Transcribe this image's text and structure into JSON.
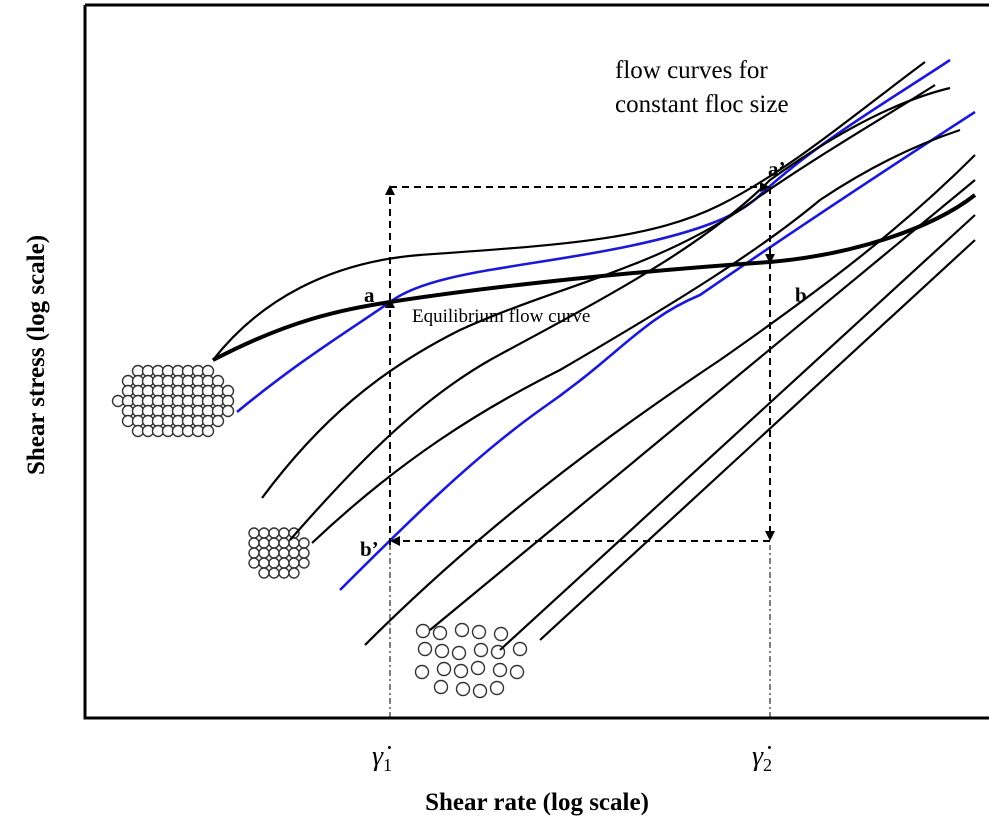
{
  "diagram": {
    "y_axis_label": "Shear stress (log scale)",
    "x_axis_label": "Shear rate (log scale)",
    "annotation": {
      "lines": [
        "flow curves for",
        "constant floc size"
      ]
    },
    "equilibrium_label": "Equilibrium flow curve",
    "points": {
      "a": "a",
      "a_prime": "a’",
      "b": "b",
      "b_prime": "b’"
    },
    "x_ticks": [
      {
        "symbol": "γ̇",
        "subscript": "1"
      },
      {
        "symbol": "γ̇",
        "subscript": "2"
      }
    ]
  }
}
